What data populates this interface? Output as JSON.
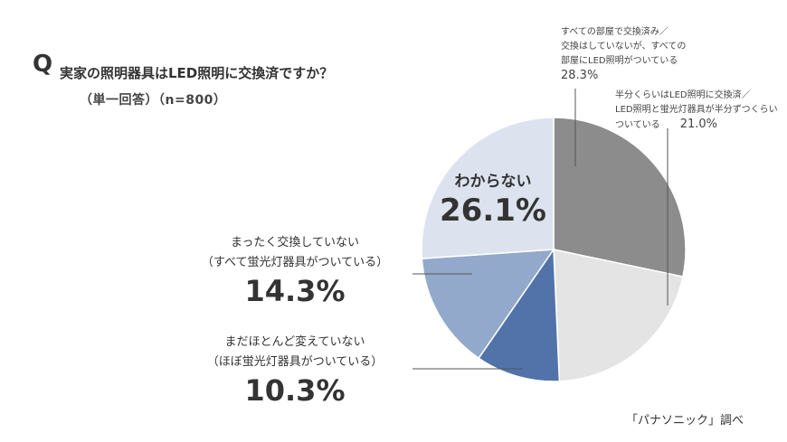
{
  "header": {
    "q_mark": "Q",
    "title": "実家の照明器具はLED照明に交換済ですか？",
    "subtitle": "（単一回答）（n=800）"
  },
  "source": "「パナソニック」調べ",
  "chart_data": {
    "type": "pie",
    "slices": [
      {
        "line1": "すべての部屋で交換済み／",
        "line2": "交換はしていないが、すべての",
        "line3": "部屋にLED照明がついている",
        "value": 28.3,
        "pct_label": "28.3%",
        "color": "#8c8c8c"
      },
      {
        "line1": "半分くらいはLED照明に交換済／",
        "line2": "LED照明と蛍光灯器具が半分ずつくらい",
        "line3": "ついている",
        "value": 21.0,
        "pct_label": "21.0%",
        "color": "#e4e4e4"
      },
      {
        "line1": "まだほとんど変えていない",
        "line2": "（ほぼ蛍光灯器具がついている）",
        "value": 10.3,
        "pct_label": "10.3%",
        "color": "#5273aa"
      },
      {
        "line1": "まったく交換していない",
        "line2": "（すべて蛍光灯器具がついている）",
        "value": 14.3,
        "pct_label": "14.3%",
        "color": "#93a9cb"
      },
      {
        "line1": "わからない",
        "value": 26.1,
        "pct_label": "26.1%",
        "color": "#dce3ee"
      }
    ]
  }
}
